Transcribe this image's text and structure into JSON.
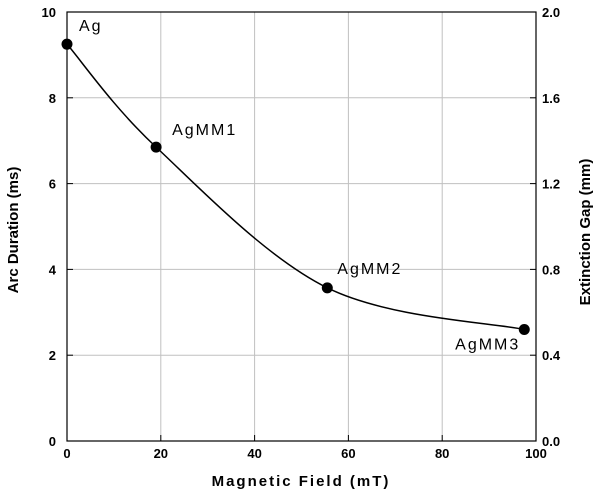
{
  "chart_data": {
    "type": "scatter",
    "title": "",
    "xlabel": "Magnetic Field (mT)",
    "ylabel": "Arc Duration (ms)",
    "y2label": "Extinction Gap (mm)",
    "xlim": [
      0,
      100
    ],
    "ylim": [
      0,
      10
    ],
    "y2lim": [
      0.0,
      2.0
    ],
    "x_ticks": [
      "0",
      "20",
      "40",
      "60",
      "80",
      "100"
    ],
    "y_ticks": [
      "0",
      "2",
      "4",
      "6",
      "8",
      "10"
    ],
    "y2_ticks": [
      "0.0",
      "0.4",
      "0.8",
      "1.2",
      "1.6",
      "2.0"
    ],
    "grid": true,
    "series": [
      {
        "points": [
          {
            "label": "Ag",
            "x": 0,
            "y": 9.25
          },
          {
            "label": "AgMM1",
            "x": 19,
            "y": 6.85
          },
          {
            "label": "AgMM2",
            "x": 55.5,
            "y": 3.57
          },
          {
            "label": "AgMM3",
            "x": 97.5,
            "y": 2.6
          }
        ]
      }
    ],
    "colors": {
      "line": "#000000",
      "marker": "#000000",
      "grid": "#c0c0c0"
    }
  }
}
